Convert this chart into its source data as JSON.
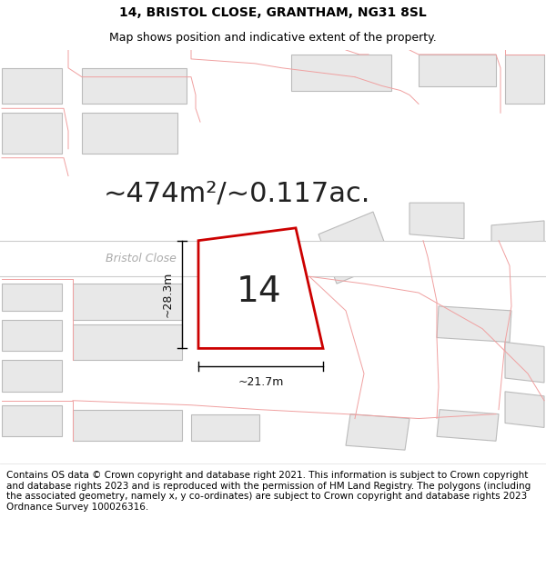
{
  "title_line1": "14, BRISTOL CLOSE, GRANTHAM, NG31 8SL",
  "title_line2": "Map shows position and indicative extent of the property.",
  "footer_text": "Contains OS data © Crown copyright and database right 2021. This information is subject to Crown copyright and database rights 2023 and is reproduced with the permission of HM Land Registry. The polygons (including the associated geometry, namely x, y co-ordinates) are subject to Crown copyright and database rights 2023 Ordnance Survey 100026316.",
  "area_text": "~474m²/~0.117ac.",
  "street_label": "Bristol Close",
  "plot_label": "14",
  "dim_width": "~21.7m",
  "dim_height": "~28.3m",
  "map_bg": "#ffffff",
  "building_fill": "#e8e8e8",
  "building_edge": "#bbbbbb",
  "road_line_color": "#f0a0a0",
  "street_band_color": "#ffffff",
  "street_edge_color": "#cccccc",
  "plot_fill": "#ffffff",
  "plot_edge": "#cc0000",
  "title_fontsize": 10,
  "subtitle_fontsize": 9,
  "footer_fontsize": 7.5,
  "area_fontsize": 22,
  "label_fontsize": 28,
  "dim_fontsize": 9,
  "street_fontsize": 9
}
